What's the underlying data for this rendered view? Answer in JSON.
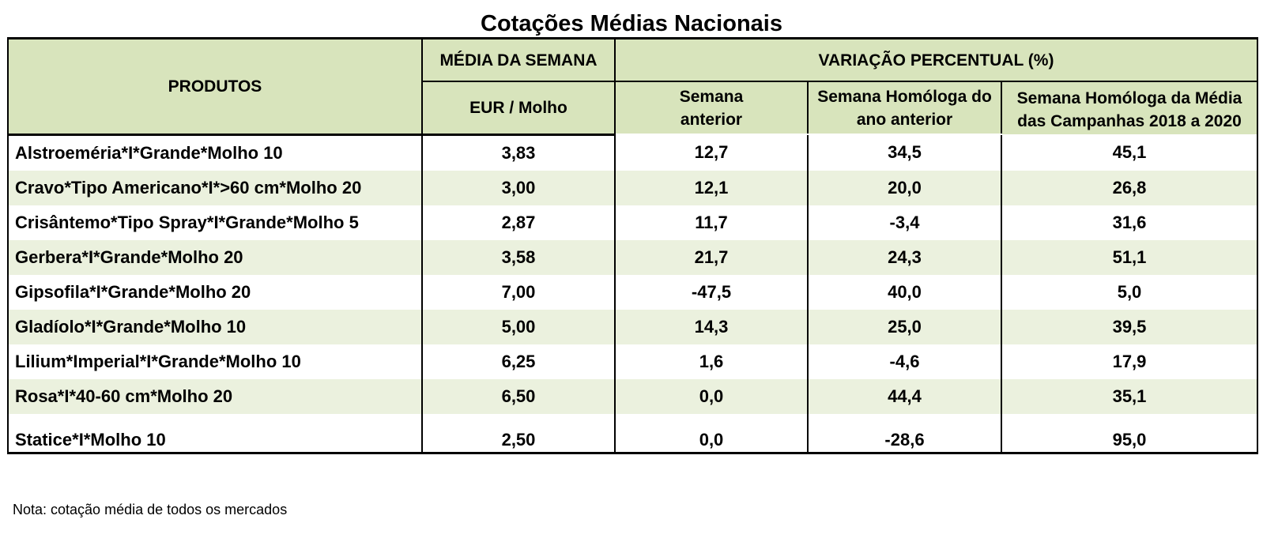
{
  "title": "Cotações Médias Nacionais",
  "headers": {
    "produtos": "PRODUTOS",
    "media_semana": "MÉDIA DA SEMANA",
    "unidade": "EUR / Molho",
    "variacao": "VARIAÇÃO PERCENTUAL (%)",
    "semana_anterior": "Semana anterior",
    "homologa_ano_anterior": "Semana Homóloga do ano anterior",
    "homologa_campanhas": "Semana Homóloga da Média das Campanhas 2018 a 2020"
  },
  "rows": [
    {
      "produto": "Alstroeméria*I*Grande*Molho 10",
      "media": "3,83",
      "sem_ant": "12,7",
      "hom_ano": "34,5",
      "hom_camp": "45,1"
    },
    {
      "produto": "Cravo*Tipo Americano*I*>60 cm*Molho 20",
      "media": "3,00",
      "sem_ant": "12,1",
      "hom_ano": "20,0",
      "hom_camp": "26,8"
    },
    {
      "produto": "Crisântemo*Tipo Spray*I*Grande*Molho 5",
      "media": "2,87",
      "sem_ant": "11,7",
      "hom_ano": "-3,4",
      "hom_camp": "31,6"
    },
    {
      "produto": "Gerbera*I*Grande*Molho 20",
      "media": "3,58",
      "sem_ant": "21,7",
      "hom_ano": "24,3",
      "hom_camp": "51,1"
    },
    {
      "produto": "Gipsofila*I*Grande*Molho 20",
      "media": "7,00",
      "sem_ant": "-47,5",
      "hom_ano": "40,0",
      "hom_camp": "5,0"
    },
    {
      "produto": "Gladíolo*I*Grande*Molho 10",
      "media": "5,00",
      "sem_ant": "14,3",
      "hom_ano": "25,0",
      "hom_camp": "39,5"
    },
    {
      "produto": "Lilium*Imperial*I*Grande*Molho 10",
      "media": "6,25",
      "sem_ant": "1,6",
      "hom_ano": "-4,6",
      "hom_camp": "17,9"
    },
    {
      "produto": "Rosa*I*40-60 cm*Molho 20",
      "media": "6,50",
      "sem_ant": "0,0",
      "hom_ano": "44,4",
      "hom_camp": "35,1"
    },
    {
      "produto": "Statice*I*Molho 10",
      "media": "2,50",
      "sem_ant": "0,0",
      "hom_ano": "-28,6",
      "hom_camp": "95,0"
    }
  ],
  "note": "Nota: cotação média de todos os mercados",
  "colors": {
    "header_bg": "#d8e4bc",
    "row_alt_bg": "#ebf1de"
  }
}
